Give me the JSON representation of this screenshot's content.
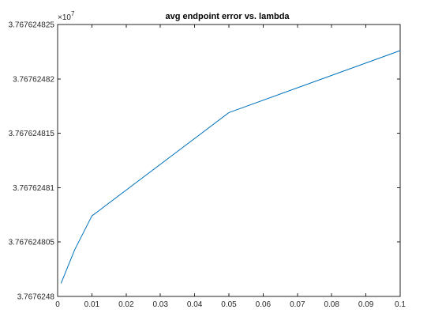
{
  "chart_data": {
    "type": "line",
    "title": "avg endpoint error vs. lambda",
    "xlabel": "",
    "ylabel": "",
    "y_scale_label": "×10",
    "y_scale_exponent": "7",
    "xlim": [
      0,
      0.1
    ],
    "ylim": [
      3.7676248,
      3.767624825
    ],
    "x_ticks": [
      0,
      0.01,
      0.02,
      0.03,
      0.04,
      0.05,
      0.06,
      0.07,
      0.08,
      0.09,
      0.1
    ],
    "x_tick_labels": [
      "0",
      "0.01",
      "0.02",
      "0.03",
      "0.04",
      "0.05",
      "0.06",
      "0.07",
      "0.08",
      "0.09",
      "0.1"
    ],
    "y_ticks": [
      3.7676248,
      3.767624805,
      3.76762481,
      3.767624815,
      3.76762482,
      3.767624825
    ],
    "y_tick_labels": [
      "3.7676248",
      "3.767624805",
      "3.76762481",
      "3.767624815",
      "3.76762482",
      "3.767624825"
    ],
    "grid": false,
    "series": [
      {
        "color": "#0072bd",
        "x": [
          0.001,
          0.005,
          0.01,
          0.05,
          0.1
        ],
        "y": [
          3.7676248012,
          3.7676248043,
          3.7676248074,
          3.7676248169,
          3.7676248226
        ]
      }
    ]
  }
}
